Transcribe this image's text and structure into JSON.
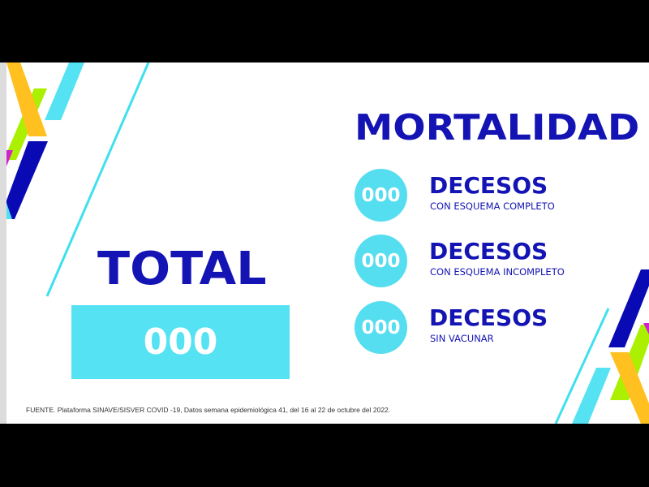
{
  "title": "MORTALIDAD",
  "rows": [
    {
      "value": "000",
      "label": "DECESOS",
      "sub": "CON ESQUEMA COMPLETO"
    },
    {
      "value": "000",
      "label": "DECESOS",
      "sub": "CON ESQUEMA INCOMPLETO"
    },
    {
      "value": "000",
      "label": "DECESOS",
      "sub": "SIN VACUNAR"
    }
  ],
  "total": {
    "label": "TOTAL",
    "value": "000"
  },
  "source": "FUENTE. Plataforma SINAVE/SISVER COVID -19, Datos semana epidemiológica 41, del 16 al 22 de octubre del 2022.",
  "colors": {
    "navy": "#1414b4",
    "cyan": "#55ddf0",
    "yellow": "#ffc020",
    "green": "#aaf000",
    "magenta": "#d020d0",
    "blue": "#0a0ab4"
  }
}
